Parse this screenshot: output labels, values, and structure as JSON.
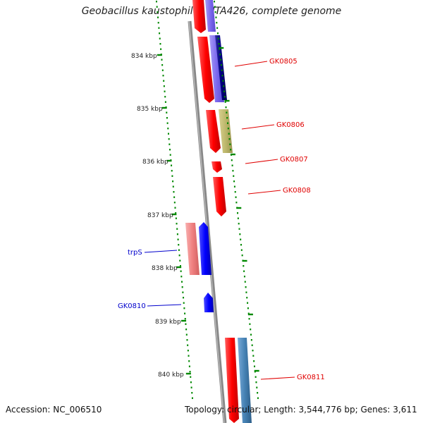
{
  "title": "Geobacillus kaustophilus HTA426, complete genome",
  "footer": {
    "accession": "Accession: NC_006510",
    "summary": "Topology: circular; Length: 3,544,776 bp; Genes: 3,611"
  },
  "kbp_labels": [
    "834 kbp",
    "835 kbp",
    "836 kbp",
    "837 kbp",
    "838 kbp",
    "839 kbp",
    "840 kbp"
  ],
  "gene_labels": [
    {
      "name": "GK0805",
      "color": "#e00000"
    },
    {
      "name": "GK0806",
      "color": "#e00000"
    },
    {
      "name": "GK0807",
      "color": "#e00000"
    },
    {
      "name": "GK0808",
      "color": "#e00000"
    },
    {
      "name": "trpS",
      "color": "#0000cc"
    },
    {
      "name": "GK0810",
      "color": "#0000cc"
    },
    {
      "name": "GK0811",
      "color": "#e00000"
    }
  ],
  "colors": {
    "forward_red": "#ff0000",
    "reverse_blue": "#0000ff",
    "backbone": "#888888",
    "tick_green": "#008800",
    "purple": "#7b68ee",
    "khaki": "#bdb76b",
    "steelblue": "#4682b4",
    "pink": "#f08080"
  }
}
